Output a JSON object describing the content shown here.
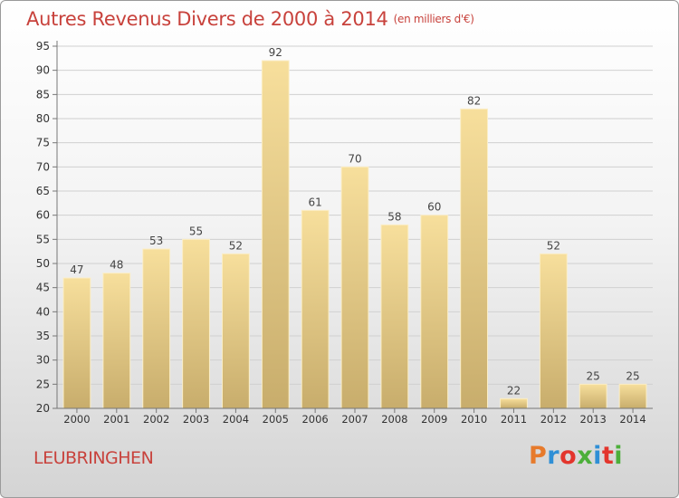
{
  "header": {
    "title": "Autres Revenus Divers de 2000 à 2014",
    "unit": "(en milliers d'€)"
  },
  "footer": {
    "place": "LEUBRINGHEN",
    "logo": "Proxiti"
  },
  "colors": {
    "title": "#c8423c",
    "bar_light": "#f7df9c",
    "bar_dark": "#c8ad6c",
    "logo_letters": [
      "#e77a2b",
      "#2f8fd6",
      "#e3352c",
      "#4caf3a",
      "#2f8fd6",
      "#e3352c",
      "#4caf3a"
    ]
  },
  "chart_data": {
    "type": "bar",
    "title": "Autres Revenus Divers de 2000 à 2014",
    "subtitle": "(en milliers d'€)",
    "categories": [
      "2000",
      "2001",
      "2002",
      "2003",
      "2004",
      "2005",
      "2006",
      "2007",
      "2008",
      "2009",
      "2010",
      "2011",
      "2012",
      "2013",
      "2014"
    ],
    "values": [
      47,
      48,
      53,
      55,
      52,
      92,
      61,
      70,
      58,
      60,
      82,
      22,
      52,
      25,
      25
    ],
    "ylim": [
      20,
      95
    ],
    "yticks": [
      20,
      25,
      30,
      35,
      40,
      45,
      50,
      55,
      60,
      65,
      70,
      75,
      80,
      85,
      90,
      95
    ],
    "grid": true,
    "data_labels": true
  }
}
